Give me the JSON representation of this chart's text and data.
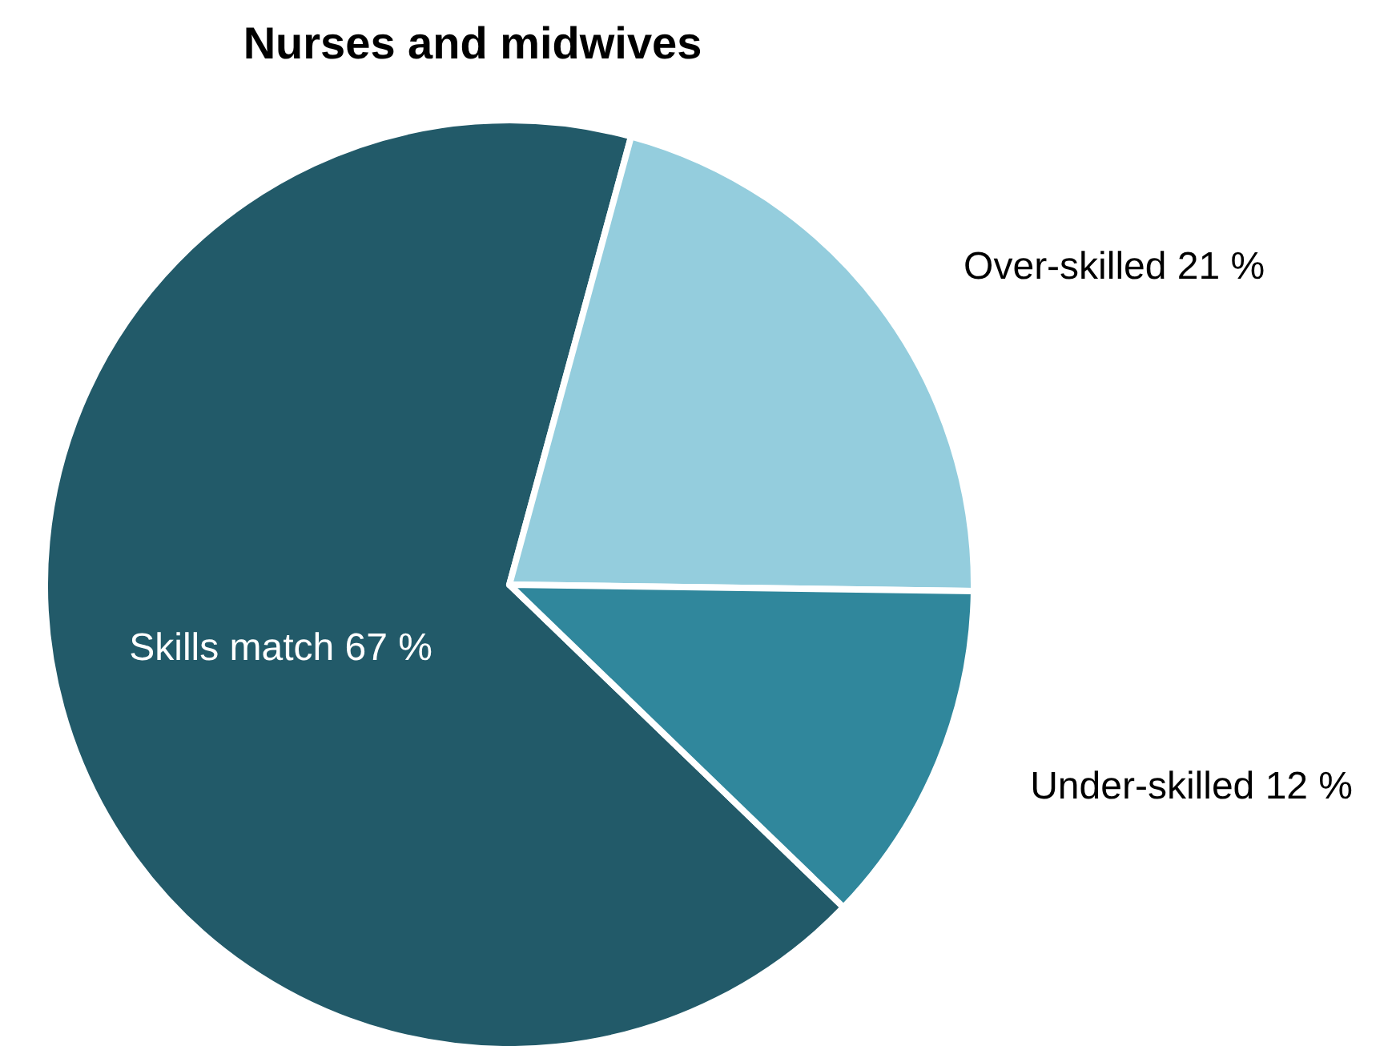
{
  "chart_data": {
    "type": "pie",
    "title": "Nurses and midwives",
    "categories": [
      "Skills match",
      "Over-skilled",
      "Under-skilled"
    ],
    "values": [
      67,
      21,
      12
    ],
    "value_labels": [
      "67 %",
      "21 %",
      "12 %"
    ],
    "colors": [
      "#225a69",
      "#94cddd",
      "#30879c"
    ],
    "legend": false
  }
}
